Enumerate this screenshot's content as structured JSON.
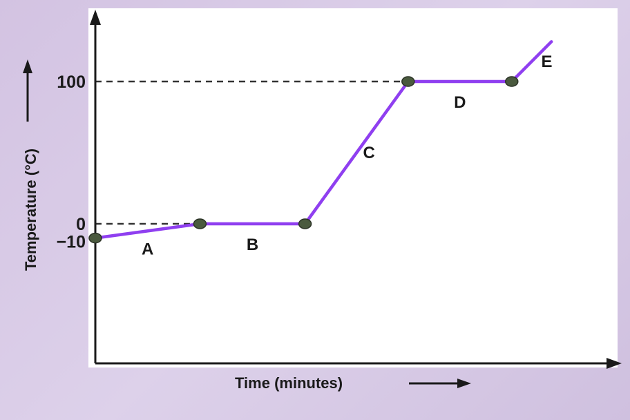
{
  "chart_data": {
    "type": "line",
    "xlabel": "Time (minutes)",
    "ylabel": "Temperature (°C)",
    "y_tick_labels": [
      "100",
      "0",
      "−10"
    ],
    "y_ticks": [
      100,
      0,
      -10
    ],
    "ylim": [
      -100,
      128
    ],
    "xlim": [
      0,
      100
    ],
    "grid": false,
    "reference_lines": [
      0,
      100
    ],
    "points": [
      {
        "x": 0,
        "y": -10
      },
      {
        "x": 20.3,
        "y": 0
      },
      {
        "x": 40.7,
        "y": 0
      },
      {
        "x": 60.7,
        "y": 100
      },
      {
        "x": 80.8,
        "y": 100
      },
      {
        "x": 88.5,
        "y": 128
      }
    ],
    "segments": [
      {
        "label": "A",
        "x_start": 0,
        "x_end": 20.3
      },
      {
        "label": "B",
        "x_start": 20.3,
        "x_end": 40.7
      },
      {
        "label": "C",
        "x_start": 40.7,
        "x_end": 60.7
      },
      {
        "label": "D",
        "x_start": 60.7,
        "x_end": 80.8
      },
      {
        "label": "E",
        "x_start": 80.8,
        "x_end": 88.5
      }
    ],
    "marker_indices": [
      0,
      1,
      2,
      3,
      4
    ],
    "colors": {
      "line": "#8f3ff0",
      "marker": "#4a5a3e",
      "axis": "#1a1a1a",
      "dashed": "#333333"
    }
  }
}
